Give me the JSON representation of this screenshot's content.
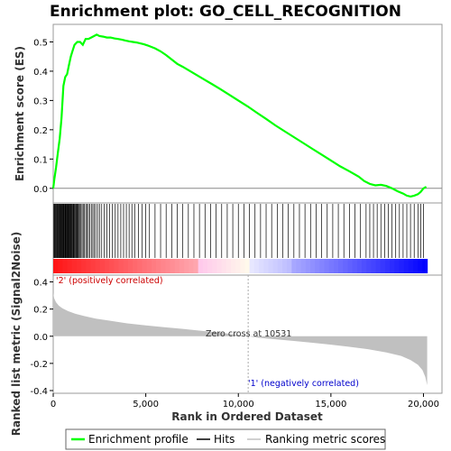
{
  "chart_data": {
    "type": "line",
    "title": "Enrichment plot: GO_CELL_RECOGNITION",
    "top_panel": {
      "ylabel": "Enrichment score (ES)",
      "ylim": [
        -0.05,
        0.56
      ],
      "yticks": [
        "0.0",
        "0.1",
        "0.2",
        "0.3",
        "0.4",
        "0.5"
      ],
      "ytick_values": [
        0.0,
        0.1,
        0.2,
        0.3,
        0.4,
        0.5
      ],
      "series": [
        {
          "name": "Enrichment profile",
          "color": "#00ff00",
          "x": [
            0,
            60,
            150,
            250,
            350,
            450,
            550,
            650,
            750,
            850,
            950,
            1050,
            1150,
            1300,
            1450,
            1600,
            1750,
            1900,
            2050,
            2200,
            2350,
            2500,
            2700,
            2900,
            3100,
            3300,
            3500,
            3700,
            3900,
            4100,
            4300,
            4500,
            4700,
            4900,
            5100,
            5300,
            5500,
            5800,
            6100,
            6400,
            6700,
            7000,
            7400,
            7800,
            8200,
            8600,
            9000,
            9500,
            10000,
            10500,
            11000,
            11500,
            12000,
            12500,
            13000,
            13500,
            14000,
            14500,
            15000,
            15500,
            16000,
            16500,
            16800,
            17100,
            17400,
            17700,
            18000,
            18300,
            18600,
            18900,
            19100,
            19300,
            19500,
            19700,
            19850,
            20000,
            20150
          ],
          "y": [
            0.0,
            0.03,
            0.07,
            0.12,
            0.17,
            0.24,
            0.35,
            0.38,
            0.39,
            0.42,
            0.45,
            0.47,
            0.49,
            0.5,
            0.5,
            0.49,
            0.51,
            0.51,
            0.515,
            0.52,
            0.525,
            0.52,
            0.518,
            0.515,
            0.515,
            0.512,
            0.51,
            0.508,
            0.505,
            0.502,
            0.5,
            0.498,
            0.495,
            0.492,
            0.488,
            0.483,
            0.478,
            0.468,
            0.455,
            0.44,
            0.425,
            0.415,
            0.4,
            0.385,
            0.37,
            0.355,
            0.34,
            0.32,
            0.3,
            0.28,
            0.258,
            0.237,
            0.215,
            0.195,
            0.175,
            0.155,
            0.135,
            0.115,
            0.095,
            0.075,
            0.058,
            0.04,
            0.025,
            0.015,
            0.01,
            0.012,
            0.008,
            0.0,
            -0.01,
            -0.018,
            -0.025,
            -0.028,
            -0.025,
            -0.02,
            -0.012,
            0.0,
            0.005
          ]
        }
      ]
    },
    "middle_panel": {
      "type": "hits",
      "hit_positions": [
        20,
        60,
        95,
        130,
        165,
        200,
        235,
        270,
        300,
        335,
        370,
        400,
        430,
        460,
        490,
        520,
        550,
        580,
        610,
        640,
        670,
        700,
        730,
        760,
        790,
        820,
        850,
        880,
        910,
        940,
        975,
        1010,
        1045,
        1080,
        1115,
        1150,
        1190,
        1230,
        1270,
        1310,
        1350,
        1400,
        1450,
        1500,
        1560,
        1620,
        1690,
        1760,
        1830,
        1900,
        1980,
        2060,
        2140,
        2220,
        2300,
        2400,
        2500,
        2620,
        2750,
        2900,
        3050,
        3200,
        3350,
        3500,
        3650,
        3800,
        3950,
        4100,
        4250,
        4400,
        4600,
        4800,
        5000,
        5200,
        5500,
        5800,
        6100,
        6400,
        6700,
        7000,
        7300,
        7600,
        7900,
        8200,
        8500,
        8800,
        9100,
        9400,
        9700,
        10000,
        10300,
        10600,
        10900,
        11200,
        11500,
        11800,
        12100,
        12400,
        12700,
        13000,
        13300,
        13600,
        13900,
        14200,
        14500,
        14800,
        15100,
        15400,
        15700,
        16000,
        16300,
        16600,
        16900,
        17100,
        17300,
        17500,
        17700,
        17900,
        18100,
        18300,
        18500,
        18700,
        18900,
        19100,
        19300,
        19500,
        19700,
        19850,
        20000
      ]
    },
    "bottom_panel": {
      "ylabel": "Ranked list metric (Signal2Noise)",
      "xlabel": "Rank in Ordered Dataset",
      "ylim": [
        -0.42,
        0.45
      ],
      "yticks": [
        "-0.4",
        "-0.2",
        "0.0",
        "0.2",
        "0.4"
      ],
      "ytick_values": [
        -0.4,
        -0.2,
        0.0,
        0.2,
        0.4
      ],
      "xlim": [
        0,
        21000
      ],
      "xticks": [
        "0",
        "5,000",
        "10,000",
        "15,000",
        "20,000"
      ],
      "xtick_values": [
        0,
        5000,
        10000,
        15000,
        20000
      ],
      "metric_x": [
        0,
        50,
        150,
        300,
        500,
        800,
        1200,
        1700,
        2300,
        3000,
        4000,
        5000,
        6000,
        7000,
        8000,
        9000,
        10000,
        10531,
        11000,
        12000,
        13000,
        14000,
        15000,
        16000,
        17000,
        18000,
        18800,
        19300,
        19700,
        19950,
        20100,
        20200
      ],
      "metric_y": [
        0.32,
        0.28,
        0.25,
        0.225,
        0.205,
        0.185,
        0.165,
        0.148,
        0.13,
        0.115,
        0.095,
        0.08,
        0.067,
        0.054,
        0.04,
        0.026,
        0.01,
        0.0,
        -0.01,
        -0.022,
        -0.035,
        -0.048,
        -0.062,
        -0.078,
        -0.095,
        -0.12,
        -0.145,
        -0.175,
        -0.21,
        -0.25,
        -0.3,
        -0.36
      ],
      "zero_cross_label": "Zero cross at 10531",
      "zero_cross_x": 10531,
      "positive_label": "'2' (positively correlated)",
      "negative_label": "'1' (negatively correlated)",
      "positive_color": "#cc0000",
      "negative_color": "#0000cc",
      "fill_color": "#c0c0c0"
    },
    "legend": {
      "placement": "bottom",
      "items": [
        {
          "label": "Enrichment profile",
          "color": "#00ff00",
          "style": "line"
        },
        {
          "label": "Hits",
          "color": "#000000",
          "style": "line"
        },
        {
          "label": "Ranking metric scores",
          "color": "#c0c0c0",
          "style": "line"
        }
      ]
    }
  }
}
